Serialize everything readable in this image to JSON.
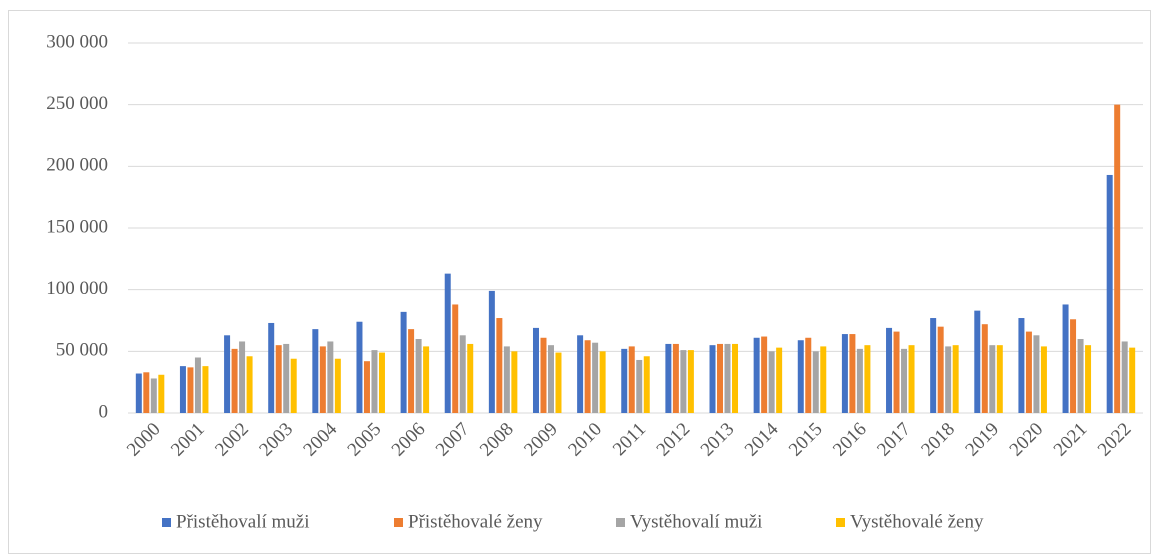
{
  "chart_data": {
    "type": "bar",
    "categories": [
      "2000",
      "2001",
      "2002",
      "2003",
      "2004",
      "2005",
      "2006",
      "2007",
      "2008",
      "2009",
      "2010",
      "2011",
      "2012",
      "2013",
      "2014",
      "2015",
      "2016",
      "2017",
      "2018",
      "2019",
      "2020",
      "2021",
      "2022"
    ],
    "series": [
      {
        "name": "Přistěhovalí muži",
        "color": "#4472c4",
        "values": [
          32000,
          38000,
          63000,
          73000,
          68000,
          74000,
          82000,
          113000,
          99000,
          69000,
          63000,
          52000,
          56000,
          55000,
          61000,
          59000,
          64000,
          69000,
          77000,
          83000,
          77000,
          88000,
          193000
        ]
      },
      {
        "name": "Přistěhovalé ženy",
        "color": "#ed7d31",
        "values": [
          33000,
          37000,
          52000,
          55000,
          54000,
          42000,
          68000,
          88000,
          77000,
          61000,
          59000,
          54000,
          56000,
          56000,
          62000,
          61000,
          64000,
          66000,
          70000,
          72000,
          66000,
          76000,
          250000
        ]
      },
      {
        "name": "Vystěhovalí muži",
        "color": "#a5a5a5",
        "values": [
          28000,
          45000,
          58000,
          56000,
          58000,
          51000,
          60000,
          63000,
          54000,
          55000,
          57000,
          43000,
          51000,
          56000,
          50000,
          50000,
          52000,
          52000,
          54000,
          55000,
          63000,
          60000,
          58000
        ]
      },
      {
        "name": "Vystěhovalé ženy",
        "color": "#ffc000",
        "values": [
          31000,
          38000,
          46000,
          44000,
          44000,
          49000,
          54000,
          56000,
          50000,
          49000,
          50000,
          46000,
          51000,
          56000,
          53000,
          54000,
          55000,
          55000,
          55000,
          55000,
          54000,
          55000,
          53000
        ]
      }
    ],
    "ylim": [
      0,
      300000
    ],
    "yticks": [
      0,
      {
        "value": 50000,
        "label": "50 000"
      },
      {
        "value": 100000,
        "label": "100 000"
      },
      {
        "value": 150000,
        "label": "150 000"
      },
      {
        "value": 200000,
        "label": "200 000"
      },
      {
        "value": 250000,
        "label": "250 000"
      },
      {
        "value": 300000,
        "label": "300 000"
      }
    ],
    "grid": true,
    "legend": "bottom"
  }
}
